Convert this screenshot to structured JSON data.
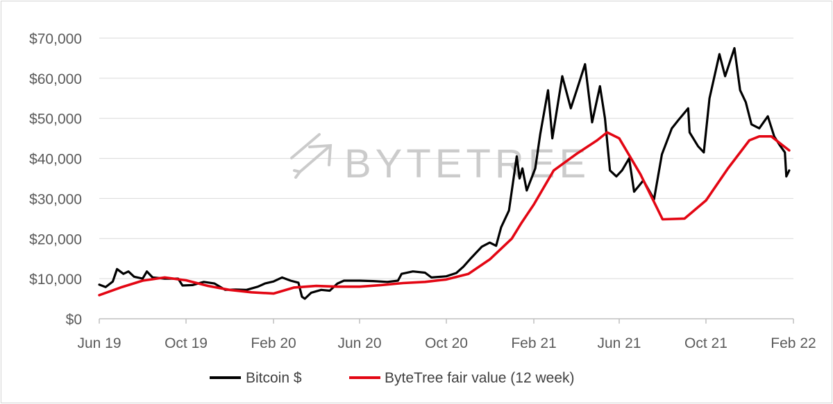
{
  "chart_data": {
    "type": "line",
    "title": "",
    "xlabel": "",
    "ylabel": "",
    "x_tick_labels": [
      "Jun 19",
      "Oct 19",
      "Feb 20",
      "Jun 20",
      "Oct 20",
      "Feb 21",
      "Jun 21",
      "Oct 21",
      "Feb 22"
    ],
    "x_ticks": [
      "2019-06-01",
      "2019-10-01",
      "2020-02-01",
      "2020-06-01",
      "2020-10-01",
      "2021-02-01",
      "2021-06-01",
      "2021-10-01",
      "2022-02-01"
    ],
    "y_tick_labels": [
      "$0",
      "$10,000",
      "$20,000",
      "$30,000",
      "$40,000",
      "$50,000",
      "$60,000",
      "$70,000"
    ],
    "ylim": [
      0,
      70000
    ],
    "xlim": [
      "2019-06-01",
      "2022-02-01"
    ],
    "grid": "horizontal",
    "legend_position": "bottom",
    "watermark": "BYTETREE",
    "series": [
      {
        "name": "Bitcoin $",
        "color": "#000000",
        "points": [
          [
            "2019-06-01",
            8500
          ],
          [
            "2019-06-10",
            7900
          ],
          [
            "2019-06-20",
            9300
          ],
          [
            "2019-06-26",
            12400
          ],
          [
            "2019-07-05",
            11200
          ],
          [
            "2019-07-12",
            11800
          ],
          [
            "2019-07-20",
            10500
          ],
          [
            "2019-08-01",
            10000
          ],
          [
            "2019-08-07",
            11800
          ],
          [
            "2019-08-15",
            10300
          ],
          [
            "2019-09-01",
            10000
          ],
          [
            "2019-09-20",
            10000
          ],
          [
            "2019-09-26",
            8300
          ],
          [
            "2019-10-10",
            8400
          ],
          [
            "2019-10-26",
            9200
          ],
          [
            "2019-11-10",
            8800
          ],
          [
            "2019-11-25",
            7200
          ],
          [
            "2019-12-10",
            7300
          ],
          [
            "2019-12-25",
            7200
          ],
          [
            "2020-01-10",
            8000
          ],
          [
            "2020-01-20",
            8800
          ],
          [
            "2020-02-01",
            9300
          ],
          [
            "2020-02-13",
            10300
          ],
          [
            "2020-02-25",
            9500
          ],
          [
            "2020-03-07",
            9000
          ],
          [
            "2020-03-12",
            5500
          ],
          [
            "2020-03-16",
            5000
          ],
          [
            "2020-03-25",
            6500
          ],
          [
            "2020-04-08",
            7200
          ],
          [
            "2020-04-20",
            7000
          ],
          [
            "2020-05-01",
            8800
          ],
          [
            "2020-05-10",
            9500
          ],
          [
            "2020-06-01",
            9500
          ],
          [
            "2020-06-20",
            9400
          ],
          [
            "2020-07-10",
            9200
          ],
          [
            "2020-07-25",
            9500
          ],
          [
            "2020-07-30",
            11200
          ],
          [
            "2020-08-15",
            11800
          ],
          [
            "2020-09-01",
            11500
          ],
          [
            "2020-09-10",
            10300
          ],
          [
            "2020-10-01",
            10600
          ],
          [
            "2020-10-15",
            11400
          ],
          [
            "2020-10-25",
            13000
          ],
          [
            "2020-11-05",
            15200
          ],
          [
            "2020-11-20",
            18000
          ],
          [
            "2020-12-01",
            19000
          ],
          [
            "2020-12-10",
            18200
          ],
          [
            "2020-12-17",
            22800
          ],
          [
            "2020-12-28",
            27000
          ],
          [
            "2021-01-08",
            40500
          ],
          [
            "2021-01-12",
            35000
          ],
          [
            "2021-01-16",
            37500
          ],
          [
            "2021-01-22",
            32000
          ],
          [
            "2021-02-03",
            37500
          ],
          [
            "2021-02-10",
            46000
          ],
          [
            "2021-02-21",
            57000
          ],
          [
            "2021-02-27",
            45000
          ],
          [
            "2021-03-13",
            60500
          ],
          [
            "2021-03-25",
            52500
          ],
          [
            "2021-04-05",
            58500
          ],
          [
            "2021-04-14",
            63500
          ],
          [
            "2021-04-24",
            49000
          ],
          [
            "2021-05-05",
            58000
          ],
          [
            "2021-05-12",
            50000
          ],
          [
            "2021-05-19",
            37000
          ],
          [
            "2021-05-28",
            35500
          ],
          [
            "2021-06-05",
            37000
          ],
          [
            "2021-06-15",
            40000
          ],
          [
            "2021-06-22",
            31700
          ],
          [
            "2021-07-05",
            34500
          ],
          [
            "2021-07-20",
            29800
          ],
          [
            "2021-07-31",
            41000
          ],
          [
            "2021-08-14",
            47500
          ],
          [
            "2021-08-23",
            49500
          ],
          [
            "2021-09-06",
            52500
          ],
          [
            "2021-09-08",
            46500
          ],
          [
            "2021-09-20",
            43000
          ],
          [
            "2021-09-28",
            41500
          ],
          [
            "2021-10-06",
            55000
          ],
          [
            "2021-10-20",
            66000
          ],
          [
            "2021-10-28",
            60500
          ],
          [
            "2021-11-10",
            67500
          ],
          [
            "2021-11-18",
            57000
          ],
          [
            "2021-11-26",
            54000
          ],
          [
            "2021-12-04",
            48500
          ],
          [
            "2021-12-15",
            47500
          ],
          [
            "2021-12-27",
            50500
          ],
          [
            "2022-01-05",
            45500
          ],
          [
            "2022-01-12",
            43500
          ],
          [
            "2022-01-20",
            41500
          ],
          [
            "2022-01-22",
            35500
          ],
          [
            "2022-01-26",
            37000
          ]
        ]
      },
      {
        "name": "ByteTree fair value (12 week)",
        "color": "#e30613",
        "points": [
          [
            "2019-06-01",
            5900
          ],
          [
            "2019-07-01",
            7800
          ],
          [
            "2019-08-01",
            9500
          ],
          [
            "2019-09-01",
            10300
          ],
          [
            "2019-10-01",
            9600
          ],
          [
            "2019-11-01",
            8200
          ],
          [
            "2019-12-01",
            7200
          ],
          [
            "2020-01-01",
            6600
          ],
          [
            "2020-02-01",
            6300
          ],
          [
            "2020-03-01",
            7800
          ],
          [
            "2020-04-01",
            8200
          ],
          [
            "2020-05-01",
            8000
          ],
          [
            "2020-06-01",
            8000
          ],
          [
            "2020-07-01",
            8400
          ],
          [
            "2020-08-01",
            8900
          ],
          [
            "2020-09-01",
            9200
          ],
          [
            "2020-10-01",
            9800
          ],
          [
            "2020-11-01",
            11200
          ],
          [
            "2020-12-01",
            14800
          ],
          [
            "2021-01-01",
            20000
          ],
          [
            "2021-01-15",
            24000
          ],
          [
            "2021-02-01",
            28500
          ],
          [
            "2021-03-01",
            37000
          ],
          [
            "2021-04-01",
            41000
          ],
          [
            "2021-05-01",
            44500
          ],
          [
            "2021-05-15",
            46500
          ],
          [
            "2021-06-01",
            45000
          ],
          [
            "2021-07-01",
            36000
          ],
          [
            "2021-08-01",
            24800
          ],
          [
            "2021-09-01",
            25000
          ],
          [
            "2021-10-01",
            29500
          ],
          [
            "2021-11-01",
            37500
          ],
          [
            "2021-12-01",
            44500
          ],
          [
            "2021-12-15",
            45500
          ],
          [
            "2022-01-01",
            45500
          ],
          [
            "2022-01-15",
            43500
          ],
          [
            "2022-01-26",
            42000
          ]
        ]
      }
    ]
  }
}
